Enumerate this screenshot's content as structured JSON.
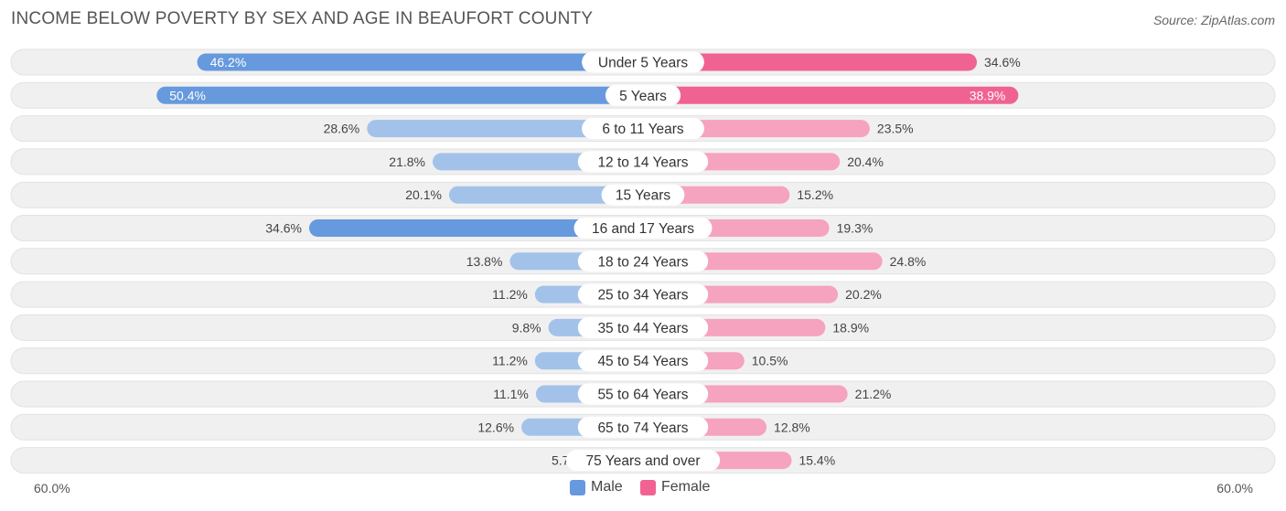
{
  "header": {
    "title": "INCOME BELOW POVERTY BY SEX AND AGE IN BEAUFORT COUNTY",
    "source": "Source: ZipAtlas.com"
  },
  "axis": {
    "left_label": "60.0%",
    "right_label": "60.0%"
  },
  "legend": {
    "male_label": "Male",
    "female_label": "Female"
  },
  "colors": {
    "male_strong": "#6699dd",
    "male_light": "#a3c2ea",
    "female_strong": "#f06292",
    "female_light": "#f5a3bf",
    "row_bg": "#f0f0f0",
    "row_border": "#e2e2e2"
  },
  "chart_data": {
    "type": "bar",
    "orientation": "horizontal-diverging",
    "title": "INCOME BELOW POVERTY BY SEX AND AGE IN BEAUFORT COUNTY",
    "xlim": [
      -60,
      60
    ],
    "unit": "%",
    "categories": [
      "Under 5 Years",
      "5 Years",
      "6 to 11 Years",
      "12 to 14 Years",
      "15 Years",
      "16 and 17 Years",
      "18 to 24 Years",
      "25 to 34 Years",
      "35 to 44 Years",
      "45 to 54 Years",
      "55 to 64 Years",
      "65 to 74 Years",
      "75 Years and over"
    ],
    "series": [
      {
        "name": "Male",
        "values": [
          46.2,
          50.4,
          28.6,
          21.8,
          20.1,
          34.6,
          13.8,
          11.2,
          9.8,
          11.2,
          11.1,
          12.6,
          5.7
        ],
        "labels": [
          "46.2%",
          "50.4%",
          "28.6%",
          "21.8%",
          "20.1%",
          "34.6%",
          "13.8%",
          "11.2%",
          "9.8%",
          "11.2%",
          "11.1%",
          "12.6%",
          "5.7%"
        ]
      },
      {
        "name": "Female",
        "values": [
          34.6,
          38.9,
          23.5,
          20.4,
          15.2,
          19.3,
          24.8,
          20.2,
          18.9,
          10.5,
          21.2,
          12.8,
          15.4
        ],
        "labels": [
          "34.6%",
          "38.9%",
          "23.5%",
          "20.4%",
          "15.2%",
          "19.3%",
          "24.8%",
          "20.2%",
          "18.9%",
          "10.5%",
          "21.2%",
          "12.8%",
          "15.4%"
        ]
      }
    ]
  }
}
